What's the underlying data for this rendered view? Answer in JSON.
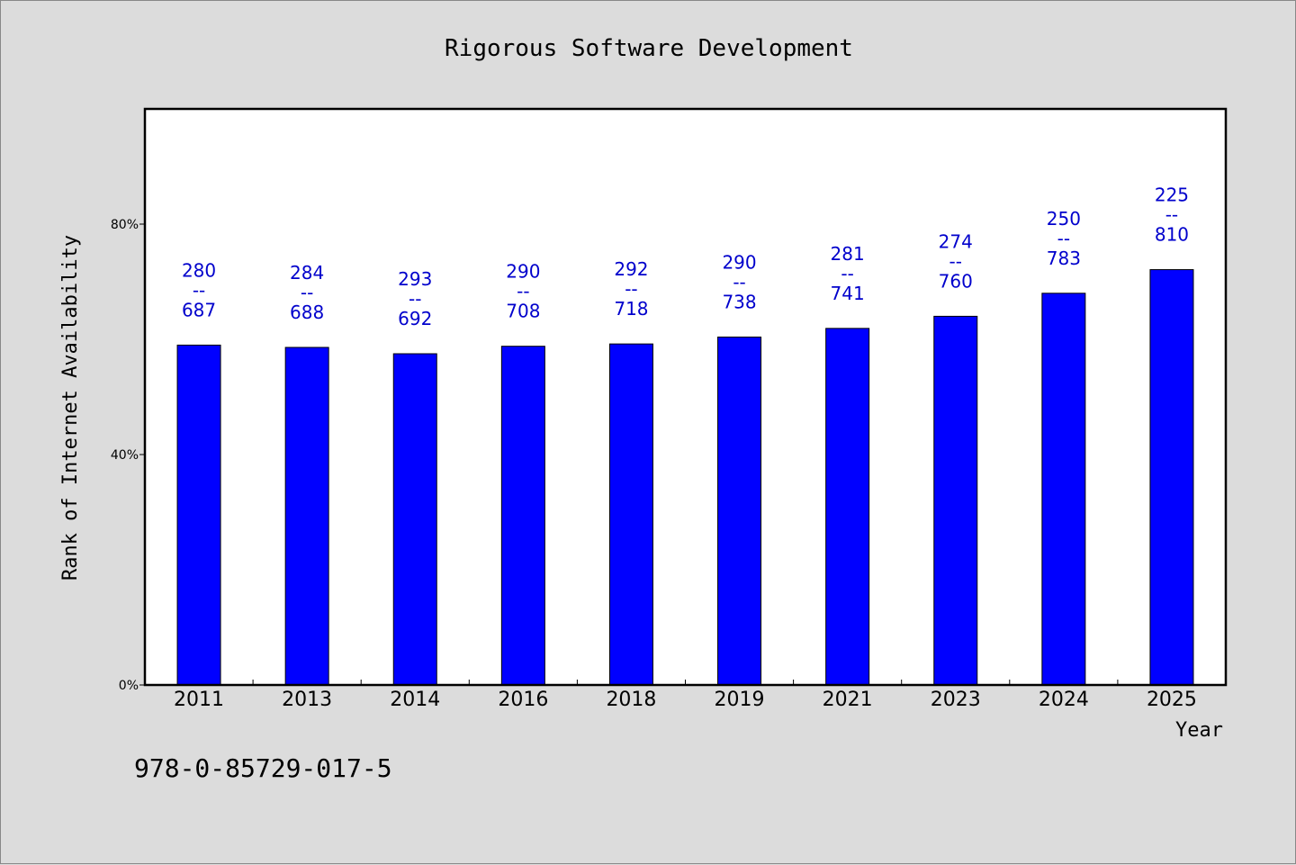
{
  "chart_data": {
    "type": "bar",
    "title": "Rigorous Software Development",
    "xlabel": "Year",
    "ylabel": "Rank of Internet Availability",
    "categories": [
      "2011",
      "2013",
      "2014",
      "2016",
      "2018",
      "2019",
      "2021",
      "2023",
      "2024",
      "2025"
    ],
    "values": [
      59.0,
      58.6,
      57.5,
      58.8,
      59.2,
      60.4,
      61.9,
      64.0,
      68.0,
      72.1
    ],
    "data_labels": [
      {
        "top": "280",
        "sep": "--",
        "bottom": "687"
      },
      {
        "top": "284",
        "sep": "--",
        "bottom": "688"
      },
      {
        "top": "293",
        "sep": "--",
        "bottom": "692"
      },
      {
        "top": "290",
        "sep": "--",
        "bottom": "708"
      },
      {
        "top": "292",
        "sep": "--",
        "bottom": "718"
      },
      {
        "top": "290",
        "sep": "--",
        "bottom": "738"
      },
      {
        "top": "281",
        "sep": "--",
        "bottom": "741"
      },
      {
        "top": "274",
        "sep": "--",
        "bottom": "760"
      },
      {
        "top": "250",
        "sep": "--",
        "bottom": "783"
      },
      {
        "top": "225",
        "sep": "--",
        "bottom": "810"
      }
    ],
    "yticks": [
      {
        "value": 0,
        "label": "0%"
      },
      {
        "value": 40,
        "label": "40%"
      },
      {
        "value": 80,
        "label": "80%"
      }
    ],
    "ylim": [
      0,
      100
    ],
    "grid": false,
    "colors": {
      "bar": "#0000ff",
      "label": "#0000cc",
      "background": "#dcdcdc",
      "plot": "#ffffff"
    }
  },
  "footnote": "978-0-85729-017-5"
}
